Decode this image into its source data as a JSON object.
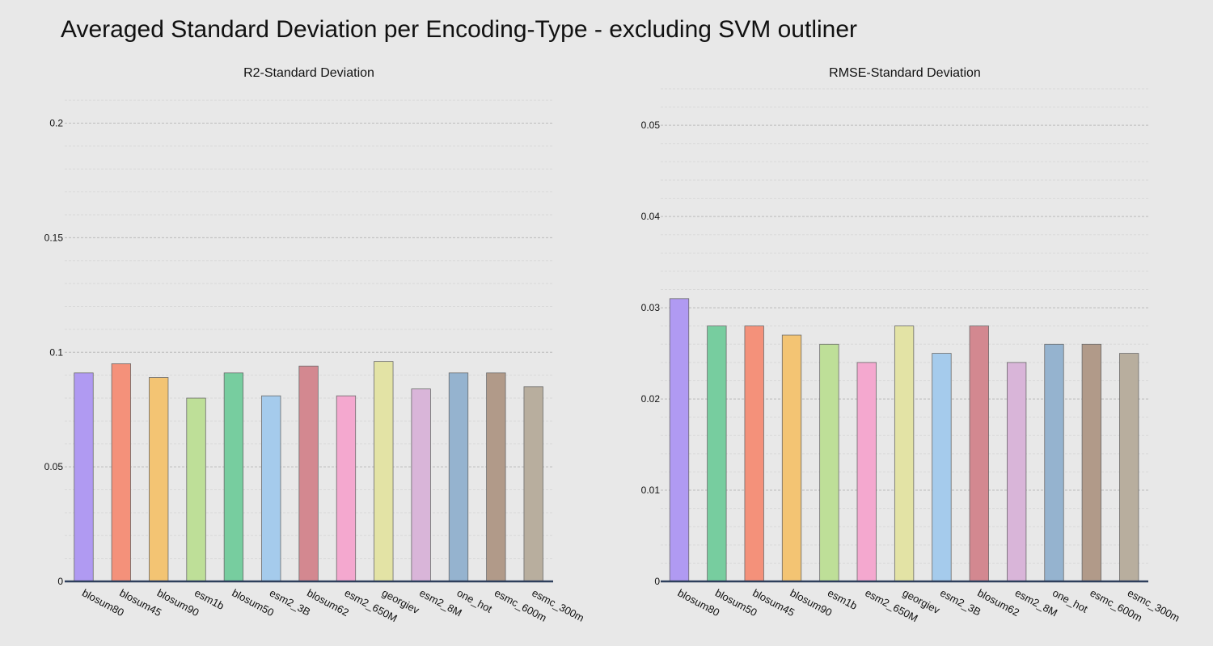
{
  "title": "Averaged Standard Deviation per Encoding-Type - excluding SVM outliner",
  "chart_data": [
    {
      "type": "bar",
      "title": "R2-Standard Deviation",
      "ylim": [
        0,
        0.215
      ],
      "yticks": [
        0,
        0.05,
        0.1,
        0.15,
        0.2
      ],
      "ytick_labels": [
        "0",
        "0.05",
        "0.1",
        "0.15",
        "0.2"
      ],
      "minor_grid_step": 0.01,
      "grid": true,
      "categories": [
        "blosum80",
        "blosum45",
        "blosum90",
        "esm1b",
        "blosum50",
        "esm2_3B",
        "blosum62",
        "esm2_650M",
        "georgiev",
        "esm2_8M",
        "one_hot",
        "esmc_600m",
        "esmc_300m"
      ],
      "values": [
        0.091,
        0.095,
        0.089,
        0.08,
        0.091,
        0.081,
        0.094,
        0.081,
        0.096,
        0.084,
        0.091,
        0.091,
        0.085
      ],
      "colors": [
        "#b09af2",
        "#f4917a",
        "#f3c473",
        "#bedf98",
        "#77cd9f",
        "#a5cbec",
        "#d38890",
        "#f4a8cf",
        "#e3e3a5",
        "#d9b5d9",
        "#95b3cf",
        "#b19a89",
        "#b8ae9e"
      ]
    },
    {
      "type": "bar",
      "title": "RMSE-Standard Deviation",
      "ylim": [
        0,
        0.054
      ],
      "yticks": [
        0,
        0.01,
        0.02,
        0.03,
        0.04,
        0.05
      ],
      "ytick_labels": [
        "0",
        "0.01",
        "0.02",
        "0.03",
        "0.04",
        "0.05"
      ],
      "minor_grid_step": 0.002,
      "grid": true,
      "categories": [
        "blosum80",
        "blosum50",
        "blosum45",
        "blosum90",
        "esm1b",
        "esm2_650M",
        "georgiev",
        "esm2_3B",
        "blosum62",
        "esm2_8M",
        "one_hot",
        "esmc_600m",
        "esmc_300m"
      ],
      "values": [
        0.031,
        0.028,
        0.028,
        0.027,
        0.026,
        0.024,
        0.028,
        0.025,
        0.028,
        0.024,
        0.026,
        0.026,
        0.025
      ],
      "colors": [
        "#b09af2",
        "#77cd9f",
        "#f4917a",
        "#f3c473",
        "#bedf98",
        "#f4a8cf",
        "#e3e3a5",
        "#a5cbec",
        "#d38890",
        "#d9b5d9",
        "#95b3cf",
        "#b19a89",
        "#b8ae9e"
      ]
    }
  ]
}
